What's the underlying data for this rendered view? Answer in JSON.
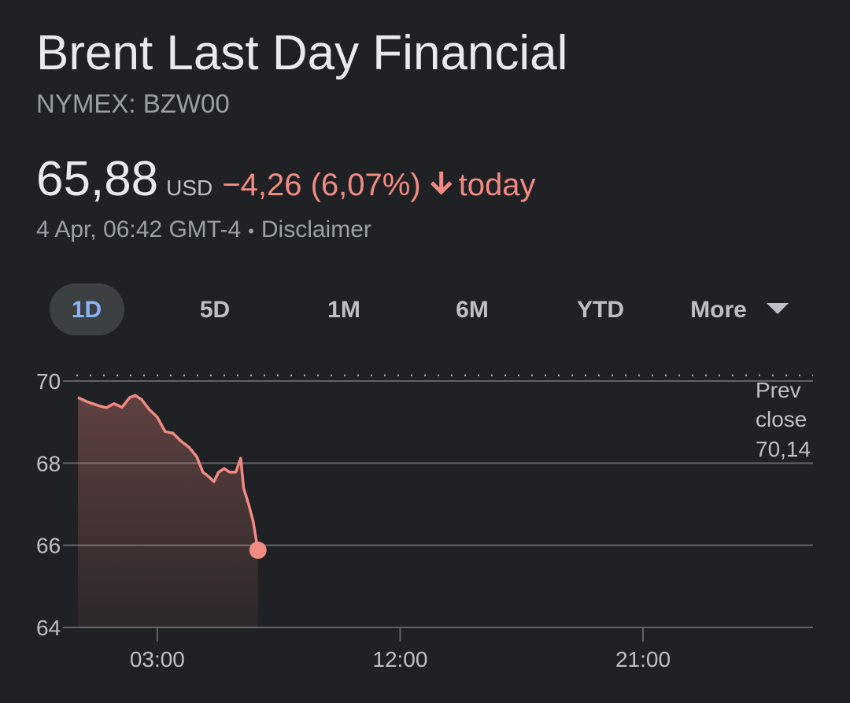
{
  "header": {
    "title": "Brent Last Day Financial",
    "ticker": "NYMEX: BZW00",
    "price": "65,88",
    "currency": "USD",
    "change": "−4,26 (6,07%)",
    "period": "today",
    "timestamp": "4 Apr, 06:42 GMT-4",
    "separator": "•",
    "disclaimer": "Disclaimer"
  },
  "tabs": [
    "1D",
    "5D",
    "1M",
    "6M",
    "YTD",
    "More"
  ],
  "chart_data": {
    "type": "line",
    "color": "#f28b82",
    "x": [
      0.06,
      0.38,
      0.82,
      1.11,
      1.4,
      1.69,
      1.98,
      2.18,
      2.42,
      2.71,
      3.0,
      3.29,
      3.58,
      3.87,
      4.17,
      4.46,
      4.69,
      4.89,
      5.1,
      5.27,
      5.48,
      5.68,
      5.91,
      6.09,
      6.2,
      6.38,
      6.55,
      6.73
    ],
    "values": [
      69.6,
      69.5,
      69.4,
      69.35,
      69.45,
      69.36,
      69.6,
      69.65,
      69.55,
      69.3,
      69.12,
      68.77,
      68.73,
      68.54,
      68.39,
      68.16,
      67.78,
      67.68,
      67.55,
      67.78,
      67.87,
      67.78,
      67.78,
      68.12,
      67.39,
      67.01,
      66.59,
      65.88
    ],
    "xlim": [
      0,
      27.3
    ],
    "xticks": [
      {
        "value": 3,
        "label": "03:00"
      },
      {
        "value": 12,
        "label": "12:00"
      },
      {
        "value": 21,
        "label": "21:00"
      }
    ],
    "ylim": [
      64,
      70
    ],
    "yticks": [
      64,
      66,
      68,
      70
    ],
    "grid": true,
    "prev_close_title": "Prev close",
    "prev_close": {
      "value": 70.14,
      "label": "70,14"
    }
  }
}
